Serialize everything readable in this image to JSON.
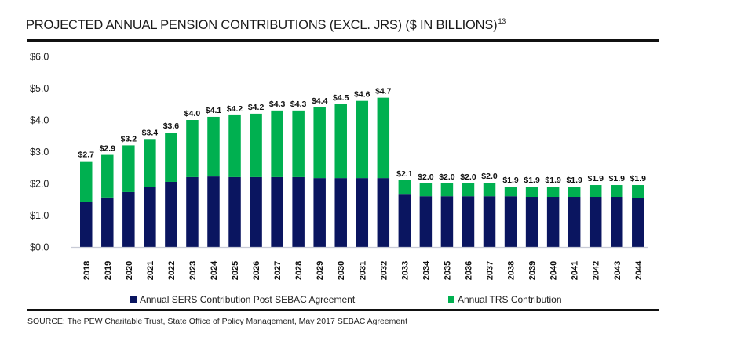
{
  "title": {
    "text": "PROJECTED ANNUAL PENSION CONTRIBUTIONS (EXCL. JRS) ($ IN BILLIONS)",
    "footnote": "13"
  },
  "source": "SOURCE: The PEW Charitable Trust, State Office of Policy Management, May 2017 SEBAC Agreement",
  "colors": {
    "sers": "#0a1560",
    "trs": "#00b050",
    "axis": "#c8cbd6"
  },
  "chart_data": {
    "type": "bar",
    "stacked": true,
    "title": "PROJECTED ANNUAL PENSION CONTRIBUTIONS (EXCL. JRS) ($ IN BILLIONS)",
    "xlabel": "",
    "ylabel": "",
    "ylim": [
      0,
      6
    ],
    "yticks": [
      "$0.0",
      "$1.0",
      "$2.0",
      "$3.0",
      "$4.0",
      "$5.0",
      "$6.0"
    ],
    "grid": false,
    "legend_position": "bottom",
    "categories": [
      "2018",
      "2019",
      "2020",
      "2021",
      "2022",
      "2023",
      "2024",
      "2025",
      "2026",
      "2027",
      "2028",
      "2029",
      "2030",
      "2031",
      "2032",
      "2033",
      "2034",
      "2035",
      "2036",
      "2037",
      "2038",
      "2039",
      "2040",
      "2041",
      "2042",
      "2043",
      "2044"
    ],
    "series": [
      {
        "name": "Annual SERS Contribution Post SEBAC Agreement",
        "values": [
          1.43,
          1.56,
          1.73,
          1.9,
          2.05,
          2.2,
          2.22,
          2.2,
          2.2,
          2.2,
          2.2,
          2.17,
          2.17,
          2.17,
          2.17,
          1.65,
          1.6,
          1.6,
          1.6,
          1.6,
          1.6,
          1.58,
          1.58,
          1.58,
          1.58,
          1.58,
          1.55
        ]
      },
      {
        "name": "Annual TRS Contribution",
        "values": [
          1.27,
          1.34,
          1.47,
          1.5,
          1.55,
          1.8,
          1.88,
          1.95,
          2.0,
          2.1,
          2.1,
          2.23,
          2.33,
          2.43,
          2.53,
          0.45,
          0.4,
          0.4,
          0.4,
          0.42,
          0.3,
          0.32,
          0.32,
          0.32,
          0.37,
          0.37,
          0.4
        ]
      }
    ],
    "totals_labels": [
      "$2.7",
      "$2.9",
      "$3.2",
      "$3.4",
      "$3.6",
      "$4.0",
      "$4.1",
      "$4.2",
      "$4.2",
      "$4.3",
      "$4.3",
      "$4.4",
      "$4.5",
      "$4.6",
      "$4.7",
      "$2.1",
      "$2.0",
      "$2.0",
      "$2.0",
      "$2.0",
      "$1.9",
      "$1.9",
      "$1.9",
      "$1.9",
      "$1.9",
      "$1.9",
      "$1.9"
    ]
  }
}
